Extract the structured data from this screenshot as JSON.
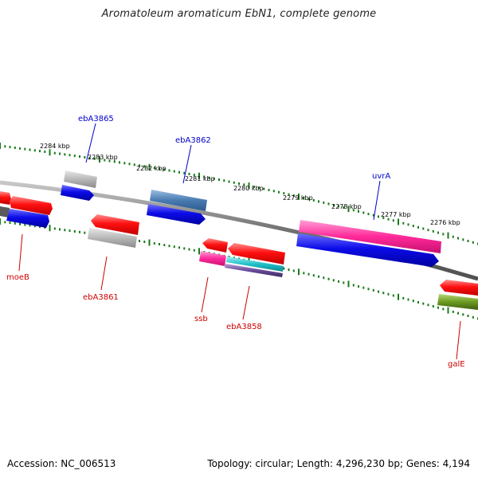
{
  "title": "Aromatoleum aromaticum EbN1, complete genome",
  "footer": {
    "accession": "Accession: NC_006513",
    "summary": "Topology: circular; Length: 4,296,230 bp; Genes: 4,194"
  },
  "colors": {
    "backbone": "#808080",
    "tick": "#1a7a1a",
    "label_forward": "#0000cc",
    "label_reverse": "#cc0000",
    "red": "#ee1111",
    "blue": "#1010ee",
    "grey": "#b0b0b0",
    "steelblue": "#4a7bb0",
    "pink": "#ff2a9a",
    "cyan": "#20c0c8",
    "purple": "#6a4a9a",
    "olive": "#6b9a20"
  },
  "scale_labels": [
    "2284 kbp",
    "2283 kbp",
    "2282 kbp",
    "2281 kbp",
    "2280 kbp",
    "2279 kbp",
    "2278 kbp",
    "2277 kbp",
    "2276 kbp"
  ],
  "gene_labels": [
    {
      "name": "ebA3865",
      "strand": "forward"
    },
    {
      "name": "ebA3862",
      "strand": "forward"
    },
    {
      "name": "uvrA",
      "strand": "forward"
    },
    {
      "name": "moeB",
      "strand": "reverse"
    },
    {
      "name": "ebA3861",
      "strand": "reverse"
    },
    {
      "name": "ssb",
      "strand": "reverse"
    },
    {
      "name": "ebA3858",
      "strand": "reverse"
    },
    {
      "name": "galE",
      "strand": "reverse"
    }
  ]
}
